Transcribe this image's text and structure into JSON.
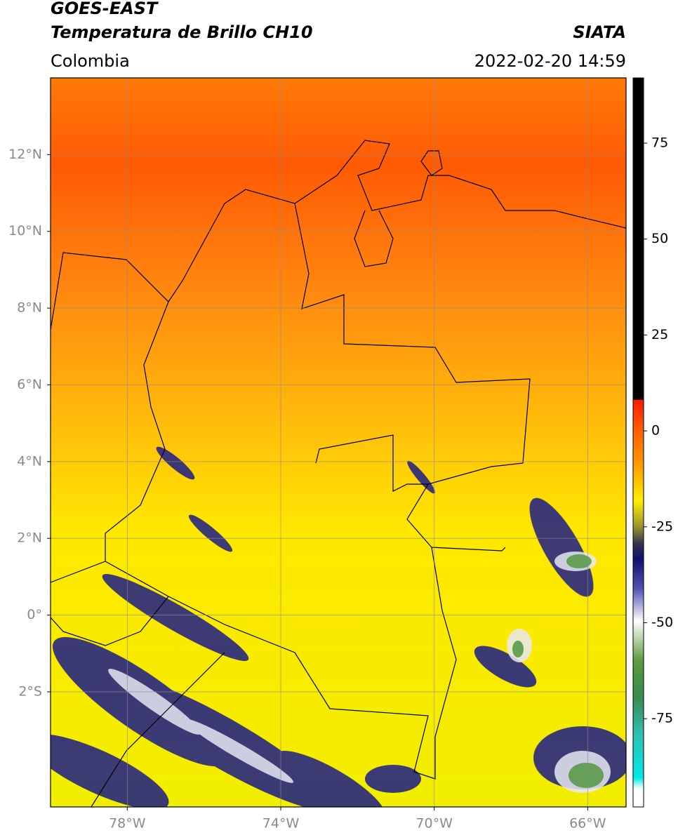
{
  "header": {
    "satellite": "GOES-EAST",
    "product": "Temperatura de Brillo CH10",
    "source": "SIATA",
    "region": "Colombia",
    "datetime": "2022-02-20 14:59"
  },
  "map": {
    "lonlim": [
      -80,
      -65
    ],
    "latlim": [
      -5,
      14
    ],
    "lonticks": [
      {
        "value": -78,
        "label": "78°W"
      },
      {
        "value": -74,
        "label": "74°W"
      },
      {
        "value": -70,
        "label": "70°W"
      },
      {
        "value": -66,
        "label": "66°W"
      }
    ],
    "latticks": [
      {
        "value": 12,
        "label": "12°N"
      },
      {
        "value": 10,
        "label": "10°N"
      },
      {
        "value": 8,
        "label": "8°N"
      },
      {
        "value": 6,
        "label": "6°N"
      },
      {
        "value": 4,
        "label": "4°N"
      },
      {
        "value": 2,
        "label": "2°N"
      },
      {
        "value": 0,
        "label": "0°"
      },
      {
        "value": -2,
        "label": "2°S"
      }
    ]
  },
  "colorbar": {
    "lim": [
      -98,
      92
    ],
    "ticks": [
      75,
      50,
      25,
      0,
      -25,
      -50,
      -75
    ]
  }
}
